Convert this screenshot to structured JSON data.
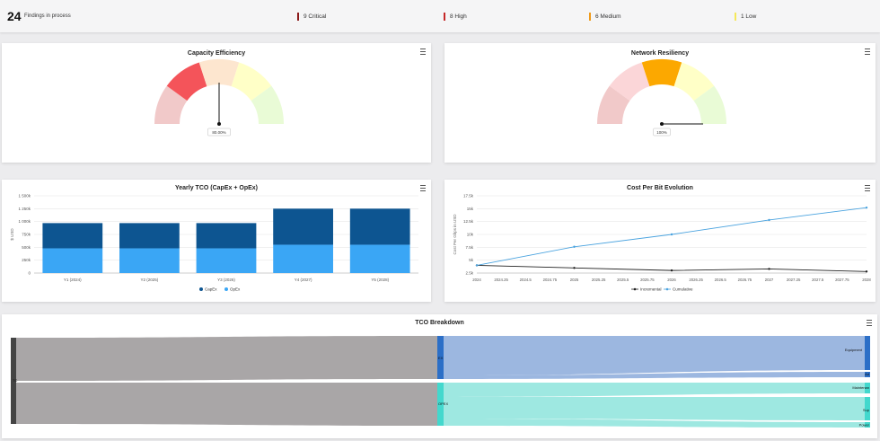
{
  "summary": {
    "count": "24",
    "count_label": "Findings in process",
    "severities": [
      {
        "label": "9 Critical",
        "color": "#8b1a1a"
      },
      {
        "label": "8 High",
        "color": "#c62828"
      },
      {
        "label": "6 Medium",
        "color": "#ef9a1a"
      },
      {
        "label": "1 Low",
        "color": "#f5e85a"
      }
    ]
  },
  "gauges": [
    {
      "title": "Capacity Efficiency",
      "value_label": "80.00%",
      "bands": [
        {
          "color": "#f1c9c9"
        },
        {
          "color": "#f4545a"
        },
        {
          "color": "#fde6cf"
        },
        {
          "color": "#ffffc7"
        },
        {
          "color": "#e9fbd6"
        }
      ],
      "needle_fraction": 0.5
    },
    {
      "title": "Network Resiliency",
      "value_label": "100%",
      "bands": [
        {
          "color": "#f1c9c9"
        },
        {
          "color": "#fbd6d8"
        },
        {
          "color": "#fca800"
        },
        {
          "color": "#ffffc7"
        },
        {
          "color": "#e9fbd6"
        }
      ],
      "needle_fraction": 1.0
    }
  ],
  "chart_data": [
    {
      "type": "bar",
      "title": "Yearly TCO (CapEx + OpEx)",
      "ylabel": "$ USD",
      "categories": [
        "Y1 (2024)",
        "Y2 (2025)",
        "Y3 (2026)",
        "Y4 (2027)",
        "Y5 (2028)"
      ],
      "ylim": [
        0,
        1500000
      ],
      "yticks": [
        "0",
        "250k",
        "500k",
        "750k",
        "1 000k",
        "1 250k",
        "1 500k"
      ],
      "stacked": true,
      "series": [
        {
          "name": "OpEx",
          "color": "#3aa6f5",
          "values": [
            480000,
            480000,
            480000,
            550000,
            550000
          ]
        },
        {
          "name": "CapEx",
          "color": "#0d5591",
          "values": [
            490000,
            490000,
            490000,
            700000,
            700000
          ]
        }
      ],
      "legend": "bottom"
    },
    {
      "type": "line",
      "title": "Cost Per Bit Evolution",
      "ylabel": "Cost Per Gbps in USD",
      "x_ticks": [
        "2024",
        "2024.25",
        "2024.5",
        "2024.75",
        "2025",
        "2025.25",
        "2025.5",
        "2025.75",
        "2026",
        "2026.25",
        "2026.5",
        "2026.75",
        "2027",
        "2027.25",
        "2027.5",
        "2027.75",
        "2028"
      ],
      "xlim": [
        2024,
        2028
      ],
      "ylim": [
        2500,
        17500
      ],
      "y_ticks": [
        "2.5k",
        "5k",
        "7.5k",
        "10k",
        "12.5k",
        "15k",
        "17.5k"
      ],
      "series": [
        {
          "name": "Incremental",
          "color": "#222222",
          "x": [
            2024,
            2025,
            2026,
            2027,
            2028
          ],
          "values": [
            4000,
            3500,
            3000,
            3300,
            2800
          ]
        },
        {
          "name": "Cumulative",
          "color": "#4aa3df",
          "x": [
            2024,
            2025,
            2026,
            2027,
            2028
          ],
          "values": [
            4000,
            7600,
            10000,
            12800,
            15200
          ]
        }
      ],
      "legend": "bottom"
    }
  ],
  "sankey": {
    "title": "TCO Breakdown",
    "nodes": [
      {
        "label": "TC",
        "color": "#444444"
      },
      {
        "label": "EX",
        "color": "#2c6fc7"
      },
      {
        "label": "OPEX",
        "color": "#43d8cd"
      },
      {
        "label": "Equipment",
        "color": "#2c6fc7"
      },
      {
        "label": "Ad",
        "color": "#2c6fc7"
      },
      {
        "label": "Maintenan",
        "color": "#43d8cd"
      },
      {
        "label": "Sup",
        "color": "#43d8cd"
      },
      {
        "label": "Power",
        "color": "#43d8cd"
      }
    ],
    "flow_colors": {
      "source": "#a4a1a2",
      "capex": "#9cb7e0",
      "opex": "#9ee8e1"
    }
  }
}
